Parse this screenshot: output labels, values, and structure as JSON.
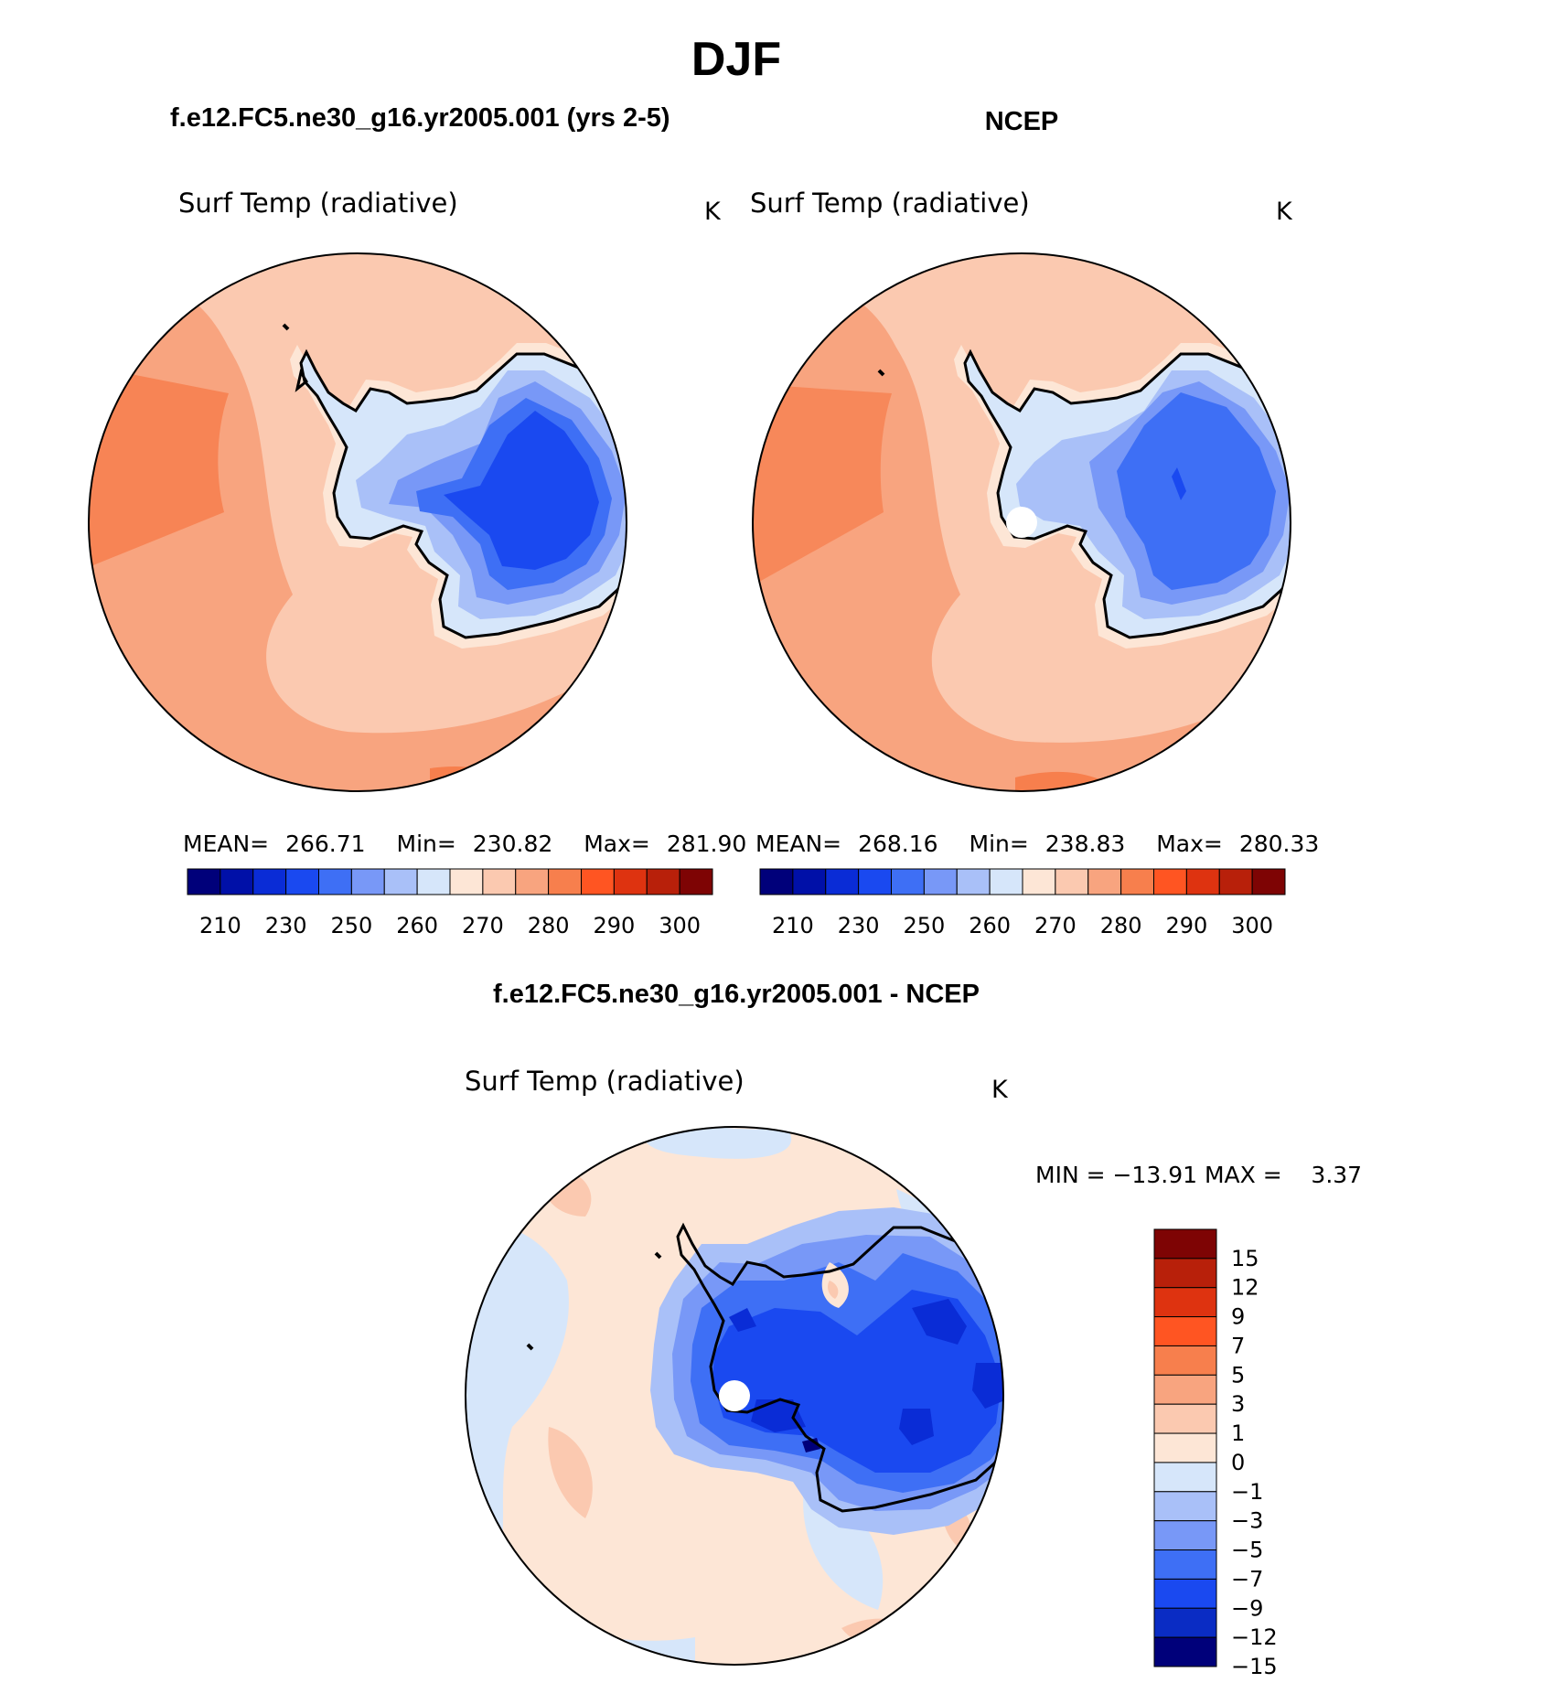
{
  "chart_data": {
    "type": "polar-contour-map",
    "title": "DJF",
    "panels": [
      {
        "id": "model",
        "heading": "f.e12.FC5.ne30_g16.yr2005.001 (yrs 2-5)",
        "variable": "Surf Temp (radiative)",
        "units": "K",
        "stats": {
          "mean_label": "MEAN=",
          "mean": "266.71",
          "min_label": "Min=",
          "min": "230.82",
          "max_label": "Max=",
          "max": "281.90"
        },
        "colorbar_ticks": [
          "210",
          "230",
          "250",
          "260",
          "270",
          "280",
          "290",
          "300"
        ]
      },
      {
        "id": "obs",
        "heading": "NCEP",
        "variable": "Surf Temp (radiative)",
        "units": "K",
        "stats": {
          "mean_label": "MEAN=",
          "mean": "268.16",
          "min_label": "Min=",
          "min": "238.83",
          "max_label": "Max=",
          "max": "280.33"
        },
        "colorbar_ticks": [
          "210",
          "230",
          "250",
          "260",
          "270",
          "280",
          "290",
          "300"
        ]
      },
      {
        "id": "diff",
        "heading": "f.e12.FC5.ne30_g16.yr2005.001 - NCEP",
        "variable": "Surf Temp (radiative)",
        "units": "K",
        "stats_text": "MIN = −13.91 MAX =    3.37",
        "stats": {
          "min": -13.91,
          "max": 3.37
        },
        "colorbar_levels": [
          "15",
          "12",
          "9",
          "7",
          "5",
          "3",
          "1",
          "0",
          "−1",
          "−3",
          "−5",
          "−7",
          "−9",
          "−12",
          "−15"
        ]
      }
    ],
    "temperature_levels": [
      200,
      210,
      220,
      230,
      240,
      250,
      255,
      260,
      265,
      270,
      275,
      280,
      285,
      290,
      295,
      300,
      310
    ],
    "diff_levels": [
      -15,
      -12,
      -9,
      -7,
      -5,
      -3,
      -1,
      0,
      1,
      3,
      5,
      7,
      9,
      12,
      15
    ]
  },
  "colors": {
    "temp_scale": [
      "#00007a",
      "#0010a8",
      "#0a2cd6",
      "#1a49f0",
      "#3e6ff5",
      "#7898f7",
      "#a9c0f8",
      "#d6e6fa",
      "#fde6d6",
      "#fbc9b0",
      "#f8a47f",
      "#f77f4d",
      "#ff5522",
      "#de3310",
      "#b8200a",
      "#7e0404"
    ],
    "diff_scale": [
      "#00007a",
      "#0a2cc4",
      "#1a49f0",
      "#3e6ff5",
      "#7898f7",
      "#a9c0f8",
      "#d6e6fa",
      "#fde6d6",
      "#fbc9b0",
      "#f8a47f",
      "#f77f4d",
      "#ff5522",
      "#de3310",
      "#b8200a",
      "#7e0404"
    ]
  }
}
